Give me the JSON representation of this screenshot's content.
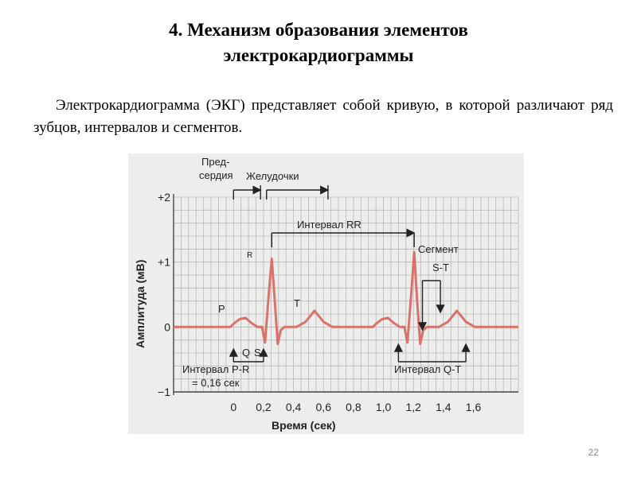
{
  "slide": {
    "title_line1": "4. Механизм образования элементов",
    "title_line2": "электрокардиограммы",
    "paragraph": "Электрокардиограмма (ЭКГ) представляет собой кривую, в которой различают ряд зубцов, интервалов и сегментов.",
    "page_number": "22"
  },
  "chart_data": {
    "type": "line",
    "xlabel": "Время (сек)",
    "ylabel": "Амплитуда (мВ)",
    "x_ticks": [
      "0",
      "0,2",
      "0,4",
      "0,6",
      "0,8",
      "1,0",
      "1,2",
      "1,4",
      "1,6"
    ],
    "y_ticks": [
      "+2",
      "+1",
      "0",
      "−1"
    ],
    "xlim": [
      -0.4,
      1.9
    ],
    "ylim": [
      -1,
      2
    ],
    "waves": {
      "P": "P",
      "Q": "Q",
      "R": "R",
      "S": "S",
      "T": "T"
    },
    "annotations": {
      "atria_line1": "Пред-",
      "atria_line2": "сердия",
      "ventricles": "Желудочки",
      "rr_interval": "Интервал RR",
      "st_segment_line1": "Сегмент",
      "st_segment_line2": "S-T",
      "pr_interval_line1": "Интервал P-R",
      "pr_interval_line2": "= 0,16 сек",
      "qt_interval": "Интервал Q-T"
    },
    "curve_color": "#d9736a",
    "grid_color": "#b8b8b8"
  }
}
